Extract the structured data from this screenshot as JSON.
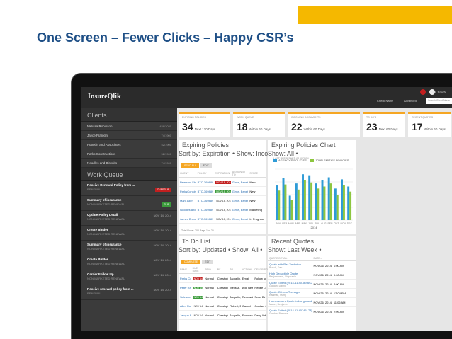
{
  "slide": {
    "title": "One Screen – Fewer Clicks – Happy CSR’s",
    "accent": "#f5b800",
    "title_color": "#1e4f86"
  },
  "app": {
    "logo": "InsureQlik",
    "topbar": {
      "user": "John Smith",
      "check_name": "Check Name",
      "advanced": "Advanced",
      "search_placeholder": "Search Client Name"
    },
    "sidebar": {
      "clients_header": "Clients",
      "clients": [
        {
          "name": "Melissa Robinson",
          "value": "438/2020"
        },
        {
          "name": "Jayce Franklin",
          "value": "74/1900"
        },
        {
          "name": "Franklin and Associates",
          "value": "52/1900"
        },
        {
          "name": "Parks Constructions",
          "value": "52/1900"
        },
        {
          "name": "Noodles and Biscuits",
          "value": "74/1900"
        }
      ],
      "work_queue_header": "Work Queue",
      "work_queue": [
        {
          "title": "Receive Renewal Policy from ...",
          "sub": "RENEWAL",
          "date": "",
          "tag": "OVERDUE",
          "tag_type": "red"
        },
        {
          "title": "Summary of insurance",
          "sub": "NON-MARKETED RENEWAL",
          "date": "",
          "tag": "DUE",
          "tag_type": "green"
        },
        {
          "title": "Update Policy Detail",
          "sub": "NON-MARKETED RENEWAL",
          "date": "NOV 14, 2014",
          "tag": "",
          "tag_type": ""
        },
        {
          "title": "Create Binder",
          "sub": "NON-MARKETED RENEWAL",
          "date": "NOV 14, 2014",
          "tag": "",
          "tag_type": ""
        },
        {
          "title": "Summary of insurance",
          "sub": "NON-MARKETED RENEWAL",
          "date": "NOV 14, 2014",
          "tag": "",
          "tag_type": ""
        },
        {
          "title": "Create Binder",
          "sub": "NON-MARKETED RENEWAL",
          "date": "NOV 14, 2014",
          "tag": "",
          "tag_type": ""
        },
        {
          "title": "Carrier Follow Up",
          "sub": "NON-MARKETED RENEWAL",
          "date": "NOV 14, 2014",
          "tag": "",
          "tag_type": ""
        },
        {
          "title": "Receive renewal policy from ...",
          "sub": "RENEWAL",
          "date": "NOV 14, 2014",
          "tag": "",
          "tag_type": ""
        }
      ]
    },
    "stats": [
      {
        "label": "EXPIRING POLICIES",
        "value": "34",
        "sub": "Next 120 Days"
      },
      {
        "label": "WORK QUEUE",
        "value": "18",
        "sub": "Within 60 Days"
      },
      {
        "label": "INCOMING DOCUMENTS",
        "value": "22",
        "sub": "Within 60 Days"
      },
      {
        "label": "TO DO'S",
        "value": "23",
        "sub": "Next 60 Days"
      },
      {
        "label": "RECENT QUOTES",
        "value": "17",
        "sub": "Within 60 Days"
      }
    ],
    "expiring": {
      "title": "Expiring Policies",
      "controls": "Sort by: Expiration •  Show: Incomplete •",
      "btn_primary": "SEND ALL",
      "btn_secondary": "EDIT",
      "columns": [
        "CLIENT",
        "POLICY",
        "EXPIRATION",
        "ASSIGNED TO",
        "STAGE"
      ],
      "rows": [
        {
          "client": "Pearson, Shirley",
          "policy": "BTC-369889",
          "expiration": "NOV 18, 2014",
          "assigned": "Gene, Benett",
          "stage": "New",
          "color": "#c21f1f"
        },
        {
          "client": "ParksConstruction",
          "policy": "BTC-369889",
          "expiration": "NOV 18, 2014",
          "assigned": "Gene, Benett",
          "stage": "New",
          "color": "#3c9c3c"
        },
        {
          "client": "Mary Allen",
          "policy": "BTC-369889",
          "expiration": "NOV 18, 2014",
          "assigned": "Gene, Benett",
          "stage": "New",
          "color": "#ffffff"
        },
        {
          "client": "Noodles and Biscuits",
          "policy": "BTC-369889",
          "expiration": "NOV 18, 2014",
          "assigned": "Gene, Benett",
          "stage": "Marketing",
          "color": "#ffffff"
        },
        {
          "client": "James Brown",
          "policy": "BTC-369889",
          "expiration": "NOV 18, 2014",
          "assigned": "Gene, Benett",
          "stage": "In Progress",
          "color": "#ffffff"
        }
      ],
      "footer": "Total Rows: 200     Page  1  of 25"
    },
    "chart_panel": {
      "title": "Expiring Policies Chart",
      "show": "Show: All •",
      "last_refreshed": "LAST REFRESHED 02.10.2014"
    },
    "todo": {
      "title": "To Do List",
      "controls": "Sort by: Updated •  Show: All •",
      "btn_primary": "COMPLETE",
      "btn_secondary": "EDIT",
      "columns": [
        "NAME",
        "DUE DATE",
        "PRIO",
        "BY",
        "TO",
        "ACTION",
        "DESCRIPTION"
      ],
      "rows": [
        {
          "name": "Parks Constr...",
          "due": "NOV 14, 2014",
          "prio": "Normal",
          "by": "Christopher, R",
          "to": "Jaquelin, R",
          "action": "Email",
          "desc": "Follow up on file",
          "color": "#c21f1f"
        },
        {
          "name": "Peter Rahn...",
          "due": "NOV 14, 2014",
          "prio": "Normal",
          "by": "Christopher, R",
          "to": "Melissa, R",
          "action": "Add New Driver",
          "desc": "Renee Lee Rolla Birth 10/21/1986",
          "color": "#3c9c3c"
        },
        {
          "name": "Salvana Field",
          "due": "NOV 14, 2014",
          "prio": "Normal",
          "by": "Christopher, R",
          "to": "Jaquelin, R",
          "action": "Renewal",
          "desc": "Send Binder to Client",
          "color": "#3c9c3c"
        },
        {
          "name": "Allen Robert",
          "due": "NOV 14, 2014",
          "prio": "Normal",
          "by": "Christopher, R",
          "to": "Robert, B",
          "action": "Cancel",
          "desc": "Contact Carrier for Pre Cancel",
          "color": "#ffffff"
        },
        {
          "name": "Jacque Pears...",
          "due": "NOV 14, 2014",
          "prio": "Normal",
          "by": "Christopher, R",
          "to": "Jaquelin, R",
          "action": "Endorse",
          "desc": "Deny liability Auto",
          "color": "#ffffff"
        }
      ]
    },
    "quotes": {
      "title": "Recent Quotes",
      "show": "Show: Last Week •",
      "columns": [
        "QUOTE DETAIL",
        "DATE •"
      ],
      "rows": [
        {
          "detail": "Quote with Rex Yachstics",
          "sub": "Bunch, Dan",
          "date": "NOV 26, 2014",
          "time": "1:00 AM"
        },
        {
          "detail": "High Deductible Quote",
          "sub": "Benjaminson, Stephanie",
          "date": "NOV 26, 2014",
          "time": "9:00 AM"
        },
        {
          "detail": "Quote Edited (2014-11-40789-6C2)",
          "sub": "Gordon, Danny",
          "date": "NOV 26, 2014",
          "time": "4:00 AM"
        },
        {
          "detail": "Quote: Drivers Teenager",
          "sub": "Rahman, Marty",
          "date": "NOV 26, 2014",
          "time": "12:04 PM"
        },
        {
          "detail": "Homeowners Quote in Longisland",
          "sub": "Maher, Benjamin",
          "date": "NOV 26, 2014",
          "time": "11:06 AM"
        },
        {
          "detail": "Quote Edited (2014-11-40745178)",
          "sub": "Gordon, Barbara",
          "date": "NOV 26, 2014",
          "time": "2:09 AM"
        }
      ]
    }
  },
  "chart_data": {
    "type": "bar",
    "title": "Expiring Policies Chart",
    "categories": [
      "JAN",
      "FEB",
      "MAR",
      "APR",
      "MAY",
      "JUN",
      "JUL",
      "AUG",
      "SEP",
      "OCT",
      "NOV",
      "DEC"
    ],
    "series": [
      {
        "name": "AGENCY'S POLICIES",
        "color": "#2e9bd6",
        "values": [
          68,
          82,
          48,
          72,
          90,
          88,
          72,
          78,
          84,
          62,
          80,
          66
        ]
      },
      {
        "name": "JOHN SMITH'S POLICIES",
        "color": "#8dc63f",
        "values": [
          58,
          70,
          40,
          60,
          78,
          74,
          62,
          66,
          72,
          50,
          68,
          56
        ]
      }
    ],
    "ylim": [
      0,
      100
    ],
    "xlabel": "2014",
    "grid": true,
    "legend": "top-left"
  }
}
